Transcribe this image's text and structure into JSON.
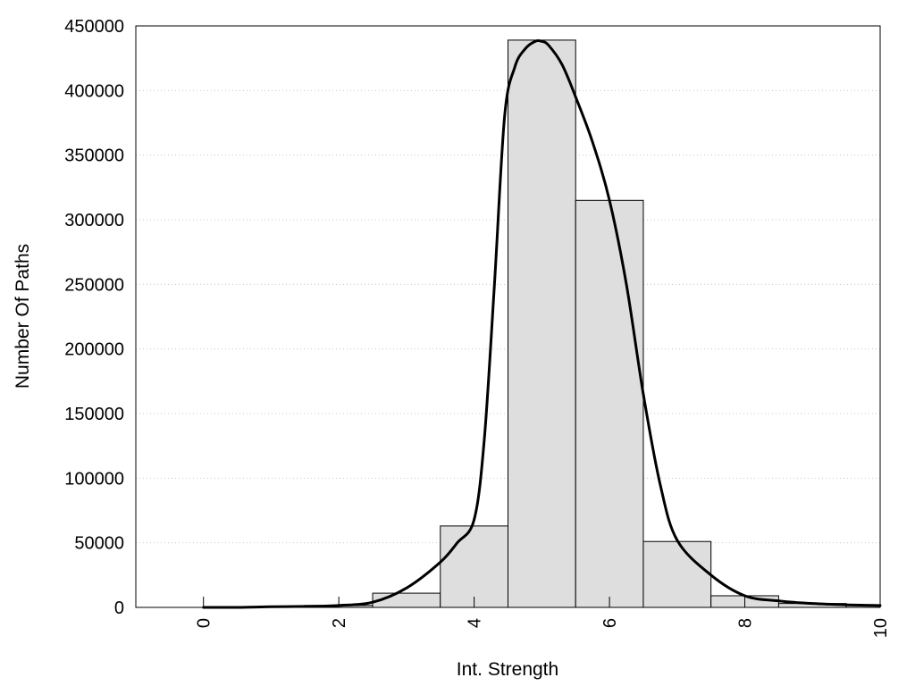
{
  "chart_data": {
    "type": "bar",
    "title": "",
    "xlabel": "Int. Strength",
    "ylabel": "Number Of Paths",
    "xlim": [
      -1,
      10
    ],
    "ylim": [
      0,
      450000
    ],
    "x_ticks": [
      0,
      2,
      4,
      6,
      8,
      10
    ],
    "x_tick_labels": [
      "0",
      "2",
      "4",
      "6",
      "8",
      "10"
    ],
    "y_ticks": [
      0,
      50000,
      100000,
      150000,
      200000,
      250000,
      300000,
      350000,
      400000,
      450000
    ],
    "y_tick_labels": [
      "0",
      "50000",
      "100000",
      "150000",
      "200000",
      "250000",
      "300000",
      "350000",
      "400000",
      "450000"
    ],
    "grid": "horizontal-dotted",
    "legend": "none",
    "bar_width": 1,
    "categories": [
      0,
      1,
      2,
      3,
      4,
      5,
      6,
      7,
      8,
      9,
      10
    ],
    "values": [
      0,
      500,
      1500,
      11000,
      63000,
      439000,
      315000,
      51000,
      9000,
      3000,
      1500
    ],
    "curve": {
      "x": [
        0,
        0.5,
        1,
        1.5,
        2,
        2.5,
        3,
        3.5,
        3.75,
        4,
        4.15,
        4.3,
        4.45,
        4.6,
        4.75,
        4.9,
        5,
        5.1,
        5.3,
        5.5,
        5.75,
        6,
        6.25,
        6.5,
        6.75,
        7,
        7.5,
        8,
        8.5,
        9,
        9.5,
        10
      ],
      "y": [
        0,
        0,
        500,
        800,
        1500,
        4000,
        15000,
        35000,
        50000,
        68000,
        130000,
        250000,
        380000,
        418000,
        432000,
        438000,
        438000,
        435000,
        420000,
        395000,
        360000,
        315000,
        250000,
        165000,
        95000,
        52000,
        25000,
        9000,
        5000,
        3000,
        2000,
        1500
      ],
      "color": "#000000"
    },
    "bar_fill": "#dedede",
    "bar_stroke": "#000000"
  }
}
